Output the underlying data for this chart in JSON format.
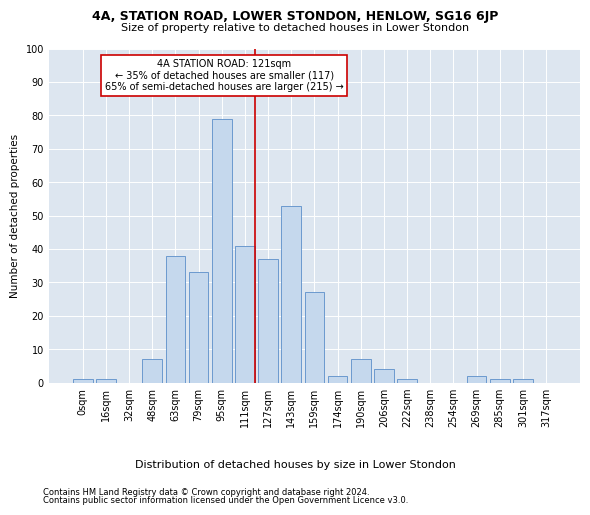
{
  "title": "4A, STATION ROAD, LOWER STONDON, HENLOW, SG16 6JP",
  "subtitle": "Size of property relative to detached houses in Lower Stondon",
  "xlabel": "Distribution of detached houses by size in Lower Stondon",
  "ylabel": "Number of detached properties",
  "footnote1": "Contains HM Land Registry data © Crown copyright and database right 2024.",
  "footnote2": "Contains public sector information licensed under the Open Government Licence v3.0.",
  "annotation_line1": "4A STATION ROAD: 121sqm",
  "annotation_line2": "← 35% of detached houses are smaller (117)",
  "annotation_line3": "65% of semi-detached houses are larger (215) →",
  "bar_labels": [
    "0sqm",
    "16sqm",
    "32sqm",
    "48sqm",
    "63sqm",
    "79sqm",
    "95sqm",
    "111sqm",
    "127sqm",
    "143sqm",
    "159sqm",
    "174sqm",
    "190sqm",
    "206sqm",
    "222sqm",
    "238sqm",
    "254sqm",
    "269sqm",
    "285sqm",
    "301sqm",
    "317sqm"
  ],
  "bar_values": [
    1,
    1,
    0,
    7,
    38,
    33,
    79,
    41,
    37,
    53,
    27,
    2,
    7,
    4,
    1,
    0,
    0,
    2,
    1,
    1,
    0
  ],
  "bar_color": "#c5d8ed",
  "bar_edge_color": "#5b8fc9",
  "bar_alpha": 1.0,
  "vline_color": "#cc0000",
  "annotation_box_color": "#cc0000",
  "background_color": "#dde6f0",
  "ylim": [
    0,
    100
  ],
  "yticks": [
    0,
    10,
    20,
    30,
    40,
    50,
    60,
    70,
    80,
    90,
    100
  ],
  "title_fontsize": 9,
  "subtitle_fontsize": 8,
  "ylabel_fontsize": 7.5,
  "xlabel_fontsize": 8,
  "tick_fontsize": 7,
  "annotation_fontsize": 7,
  "footnote_fontsize": 6
}
